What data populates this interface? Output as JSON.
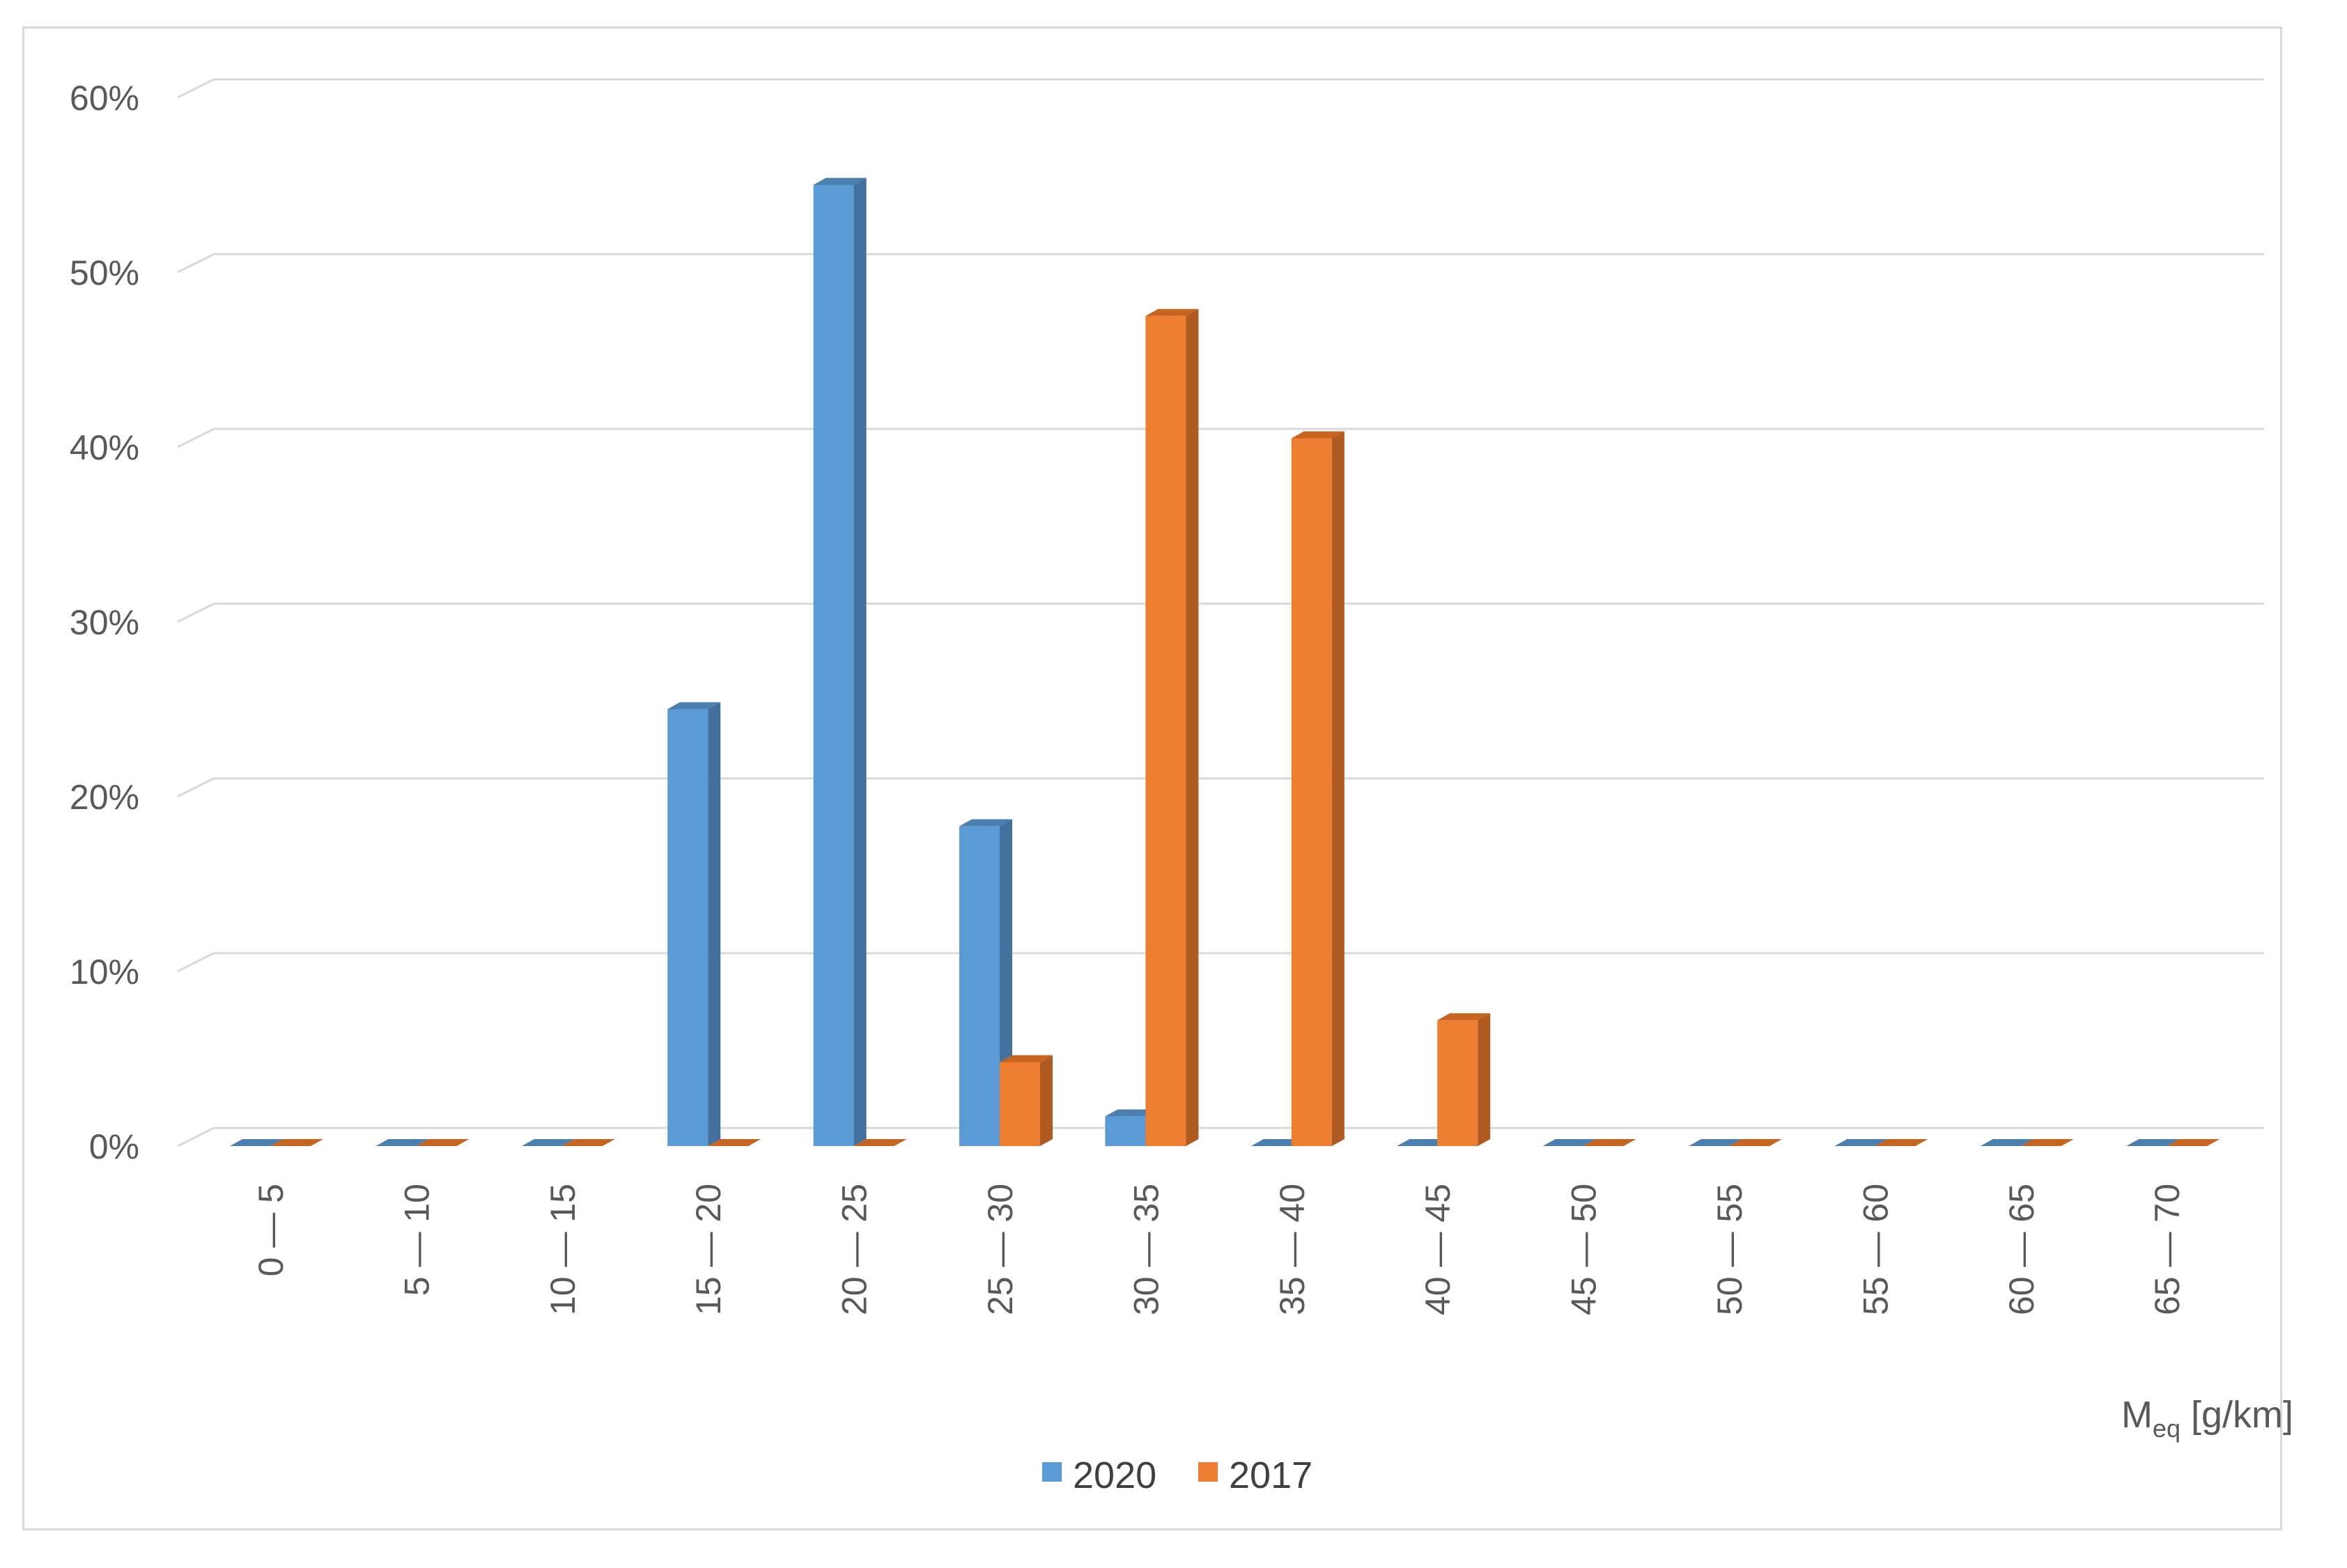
{
  "chart_data": {
    "type": "bar",
    "style": "3d-clustered-column",
    "categories": [
      "0 — 5",
      "5 — 10",
      "10 — 15",
      "15 — 20",
      "20 — 25",
      "25 — 30",
      "30 — 35",
      "35 — 40",
      "40 — 45",
      "45 — 50",
      "50 — 55",
      "55 — 60",
      "60 — 65",
      "65 — 70"
    ],
    "series": [
      {
        "name": "2020",
        "color": "#5b9bd5",
        "side_color": "#41719c",
        "top_color": "#4a7fb0",
        "values": [
          0,
          0,
          0,
          25,
          55,
          18.3,
          1.7,
          0,
          0,
          0,
          0,
          0,
          0,
          0
        ]
      },
      {
        "name": "2017",
        "color": "#ed7d31",
        "side_color": "#ae5a21",
        "top_color": "#c6651f",
        "values": [
          0,
          0,
          0,
          0,
          0,
          4.8,
          47.5,
          40.5,
          7.2,
          0,
          0,
          0,
          0,
          0
        ]
      }
    ],
    "yticks": [
      "0%",
      "10%",
      "20%",
      "30%",
      "40%",
      "50%",
      "60%"
    ],
    "ylim": [
      0,
      60
    ],
    "xlabel_main": "M",
    "xlabel_sub": "eq",
    "xlabel_unit": " [g/km]",
    "ylabel": "",
    "grid": true,
    "legend_position": "bottom"
  }
}
